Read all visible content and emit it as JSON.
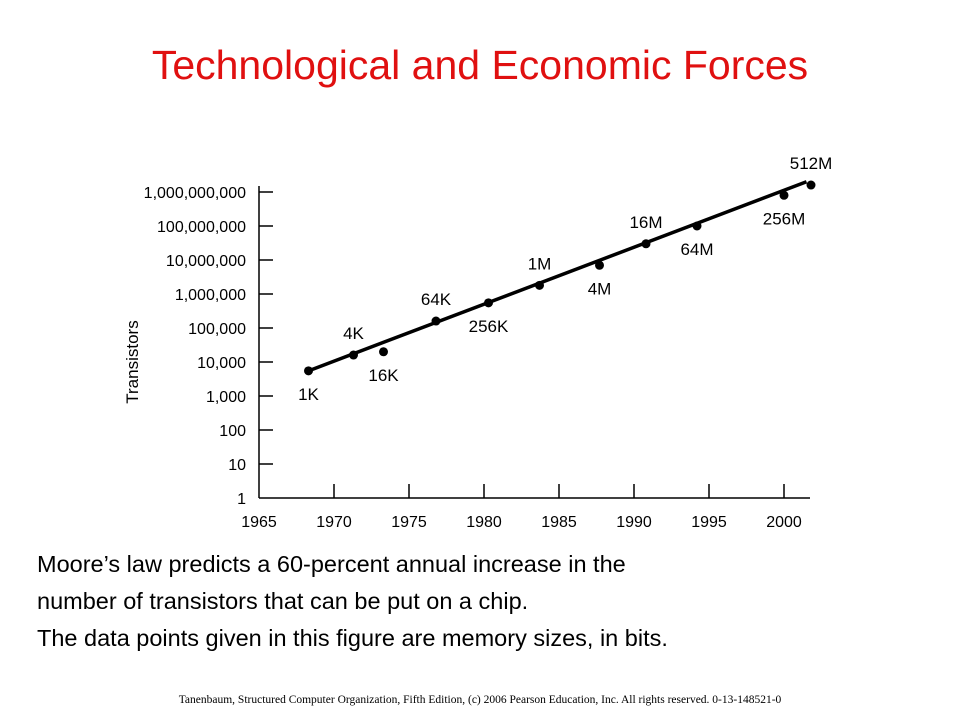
{
  "title": "Technological and Economic Forces",
  "caption": [
    "Moore’s law predicts a 60-percent annual increase in the",
    "number of transistors that can be put on a chip.",
    "The data points given in this figure are memory sizes, in bits."
  ],
  "footer": "Tanenbaum, Structured Computer Organization, Fifth Edition, (c) 2006 Pearson Education, Inc. All rights reserved. 0-13-148521-0",
  "chart_data": {
    "type": "scatter",
    "title": "",
    "xlabel": "",
    "ylabel": "Transistors",
    "y_scale": "log",
    "xlim": [
      1965,
      2002
    ],
    "ylim": [
      1,
      1000000000
    ],
    "x_ticks": [
      1965,
      1970,
      1975,
      1980,
      1985,
      1990,
      1995,
      2000
    ],
    "x_tick_labels": [
      "1965",
      "1970",
      "1975",
      "1980",
      "1985",
      "1990",
      "1995",
      "2000"
    ],
    "y_ticks": [
      1,
      10,
      100,
      1000,
      10000,
      100000,
      1000000,
      10000000,
      100000000,
      1000000000
    ],
    "y_tick_labels": [
      "1",
      "10",
      "100",
      "1,000",
      "10,000",
      "100,000",
      "1,000,000",
      "10,000,000",
      "100,000,000",
      "1,000,000,000"
    ],
    "grid": false,
    "legend": "none",
    "points": [
      {
        "x": 1968.3,
        "y": 5500,
        "label": "1K",
        "label_pos": "below"
      },
      {
        "x": 1971.3,
        "y": 16000,
        "label": "4K",
        "label_pos": "above"
      },
      {
        "x": 1973.3,
        "y": 20000,
        "label": "16K",
        "label_pos": "below"
      },
      {
        "x": 1976.8,
        "y": 160000,
        "label": "64K",
        "label_pos": "above"
      },
      {
        "x": 1980.3,
        "y": 550000,
        "label": "256K",
        "label_pos": "below"
      },
      {
        "x": 1983.7,
        "y": 1800000,
        "label": "1M",
        "label_pos": "above"
      },
      {
        "x": 1987.7,
        "y": 7000000,
        "label": "4M",
        "label_pos": "below"
      },
      {
        "x": 1990.8,
        "y": 30000000,
        "label": "16M",
        "label_pos": "above"
      },
      {
        "x": 1994.2,
        "y": 100000000,
        "label": "64M",
        "label_pos": "below"
      },
      {
        "x": 2000.0,
        "y": 800000000,
        "label": "256M",
        "label_pos": "below"
      },
      {
        "x": 2001.8,
        "y": 1600000000,
        "label": "512M",
        "label_pos": "above"
      }
    ],
    "trend_line": {
      "x": [
        1968.3,
        2001.5
      ],
      "y": [
        5500,
        2000000000
      ]
    },
    "color": "#000000"
  }
}
